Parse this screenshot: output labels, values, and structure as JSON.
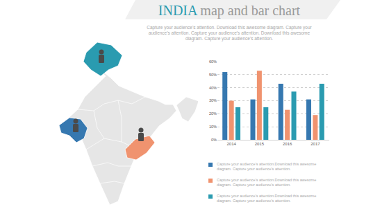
{
  "header": {
    "title_highlight": "INDIA",
    "title": "map and bar chart",
    "subtitle": "Capture your audience's attention. Download this awesome diagram. Capture your audience's attention. Capture your audience's attention. Download this awesome diagram. Capture your audience's attention."
  },
  "chart_data": {
    "type": "bar",
    "categories": [
      "2014",
      "2015",
      "2016",
      "2017"
    ],
    "series": [
      {
        "name": "Capture your audience's attention.Download this awesome diagram. Capture your audience's attention.",
        "color": "#3678b0",
        "values": [
          52,
          31,
          43,
          31
        ]
      },
      {
        "name": "Capture your audience's attention.Download this awesome diagram. Capture your audience's attention.",
        "color": "#f0936f",
        "values": [
          30,
          53,
          23,
          19
        ]
      },
      {
        "name": "Capture your audience's attention.Download this awesome diagram. Capture your audience's attention.",
        "color": "#2a9bb0",
        "values": [
          25,
          25,
          37,
          43
        ]
      }
    ],
    "ylim": [
      0,
      60
    ],
    "yticks": [
      {
        "value": 0,
        "label": "0%"
      },
      {
        "value": 10,
        "label": "10%"
      },
      {
        "value": 20,
        "label": "20%"
      },
      {
        "value": 30,
        "label": "30%"
      },
      {
        "value": 40,
        "label": "40%"
      },
      {
        "value": 50,
        "label": "50%"
      },
      {
        "value": 60,
        "label": "60%"
      }
    ],
    "grid": true,
    "legend": "bottom"
  }
}
